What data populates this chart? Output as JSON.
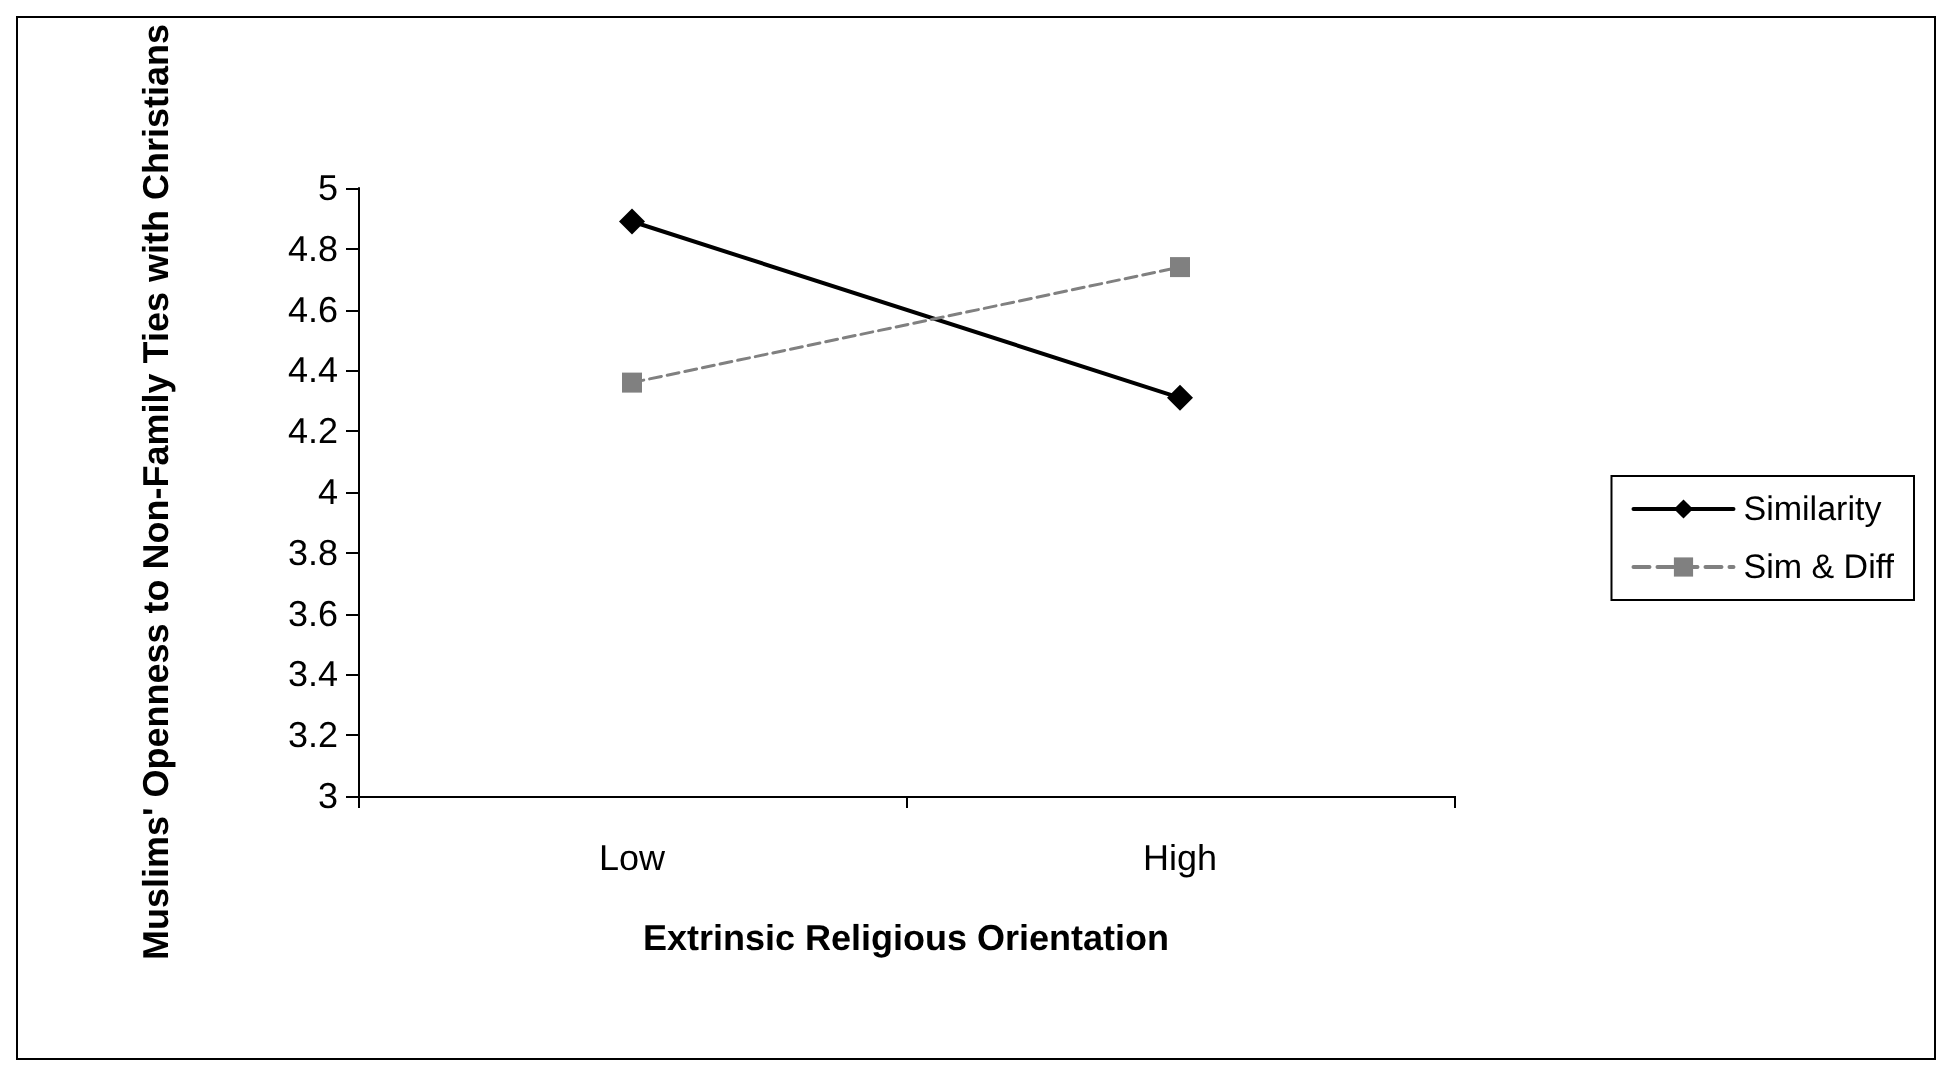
{
  "chart_data": {
    "type": "line",
    "xlabel": "Extrinsic Religious Orientation",
    "ylabel": "Muslims' Openness to Non-Family Ties with Christians",
    "categories": [
      "Low",
      "High"
    ],
    "series": [
      {
        "name": "Similarity",
        "color": "#000000",
        "values": [
          4.89,
          4.31
        ],
        "marker": "diamond",
        "line_style": "solid"
      },
      {
        "name": "Sim & Diff",
        "color": "#808080",
        "values": [
          4.36,
          4.74
        ],
        "marker": "square",
        "line_style": "dashed"
      }
    ],
    "ylim": [
      3,
      5
    ],
    "yticks": [
      3,
      3.2,
      3.4,
      3.6,
      3.8,
      4,
      4.2,
      4.4,
      4.6,
      4.8,
      5
    ],
    "grid": false,
    "legend": "right"
  }
}
